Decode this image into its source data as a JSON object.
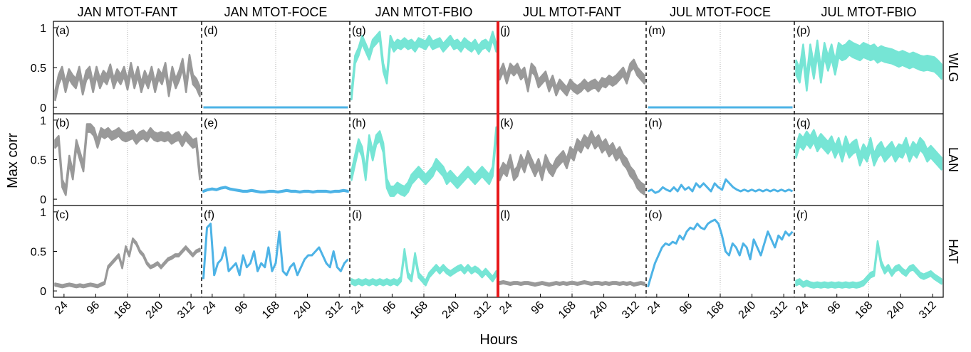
{
  "chart_data": {
    "type": "line",
    "ylabel": "Max corr",
    "xlabel": "Hours",
    "xlim": [
      0,
      336
    ],
    "ylim": [
      -0.08,
      1.08
    ],
    "xticks": [
      24,
      96,
      168,
      240,
      312
    ],
    "xtick_labels": [
      "24",
      "96",
      "168",
      "240",
      "312"
    ],
    "yticks": [
      0,
      0.5,
      1
    ],
    "ytick_labels": [
      "0",
      "0.5",
      "1"
    ],
    "gridline_x": 168,
    "colors": {
      "FANT": "#999999",
      "FOCE": "#4db3e6",
      "FBIO": "#76e5d5",
      "divider": "#e8191c"
    },
    "columns": [
      {
        "title": "JAN MTOT-FANT",
        "month": "JAN",
        "source": "FANT"
      },
      {
        "title": "JAN MTOT-FOCE",
        "month": "JAN",
        "source": "FOCE"
      },
      {
        "title": "JAN MTOT-FBIO",
        "month": "JAN",
        "source": "FBIO"
      },
      {
        "title": "JUL MTOT-FANT",
        "month": "JUL",
        "source": "FANT"
      },
      {
        "title": "JUL MTOT-FOCE",
        "month": "JUL",
        "source": "FOCE"
      },
      {
        "title": "JUL MTOT-FBIO",
        "month": "JUL",
        "source": "FBIO"
      }
    ],
    "rows": [
      "WLG",
      "LAN",
      "HAT"
    ],
    "panels": [
      {
        "label": "(a)",
        "row": 0,
        "col": 0,
        "band": 0.12,
        "values": [
          0.15,
          0.35,
          0.45,
          0.25,
          0.42,
          0.35,
          0.3,
          0.45,
          0.22,
          0.4,
          0.45,
          0.25,
          0.45,
          0.3,
          0.4,
          0.35,
          0.48,
          0.3,
          0.42,
          0.35,
          0.45,
          0.28,
          0.5,
          0.3,
          0.45,
          0.25,
          0.4,
          0.3,
          0.45,
          0.25,
          0.42,
          0.35,
          0.5,
          0.2,
          0.45,
          0.3,
          0.4,
          0.55,
          0.25,
          0.6,
          0.35,
          0.3,
          0.2
        ]
      },
      {
        "label": "(b)",
        "row": 1,
        "col": 0,
        "band": 0.1,
        "values": [
          0.7,
          0.75,
          0.2,
          0.1,
          0.5,
          0.3,
          0.7,
          0.55,
          0.4,
          0.9,
          0.9,
          0.85,
          0.7,
          0.85,
          0.82,
          0.85,
          0.8,
          0.82,
          0.85,
          0.8,
          0.78,
          0.8,
          0.82,
          0.75,
          0.8,
          0.82,
          0.78,
          0.85,
          0.8,
          0.78,
          0.8,
          0.78,
          0.8,
          0.75,
          0.78,
          0.8,
          0.72,
          0.8,
          0.75,
          0.7,
          0.72,
          0.3
        ]
      },
      {
        "label": "(c)",
        "row": 2,
        "col": 0,
        "band": 0.03,
        "values": [
          0.08,
          0.07,
          0.06,
          0.07,
          0.08,
          0.07,
          0.06,
          0.07,
          0.06,
          0.07,
          0.08,
          0.07,
          0.06,
          0.08,
          0.1,
          0.3,
          0.35,
          0.4,
          0.45,
          0.3,
          0.55,
          0.45,
          0.65,
          0.6,
          0.5,
          0.45,
          0.35,
          0.3,
          0.32,
          0.35,
          0.3,
          0.35,
          0.4,
          0.42,
          0.45,
          0.45,
          0.5,
          0.55,
          0.5,
          0.45,
          0.5,
          0.52
        ]
      },
      {
        "label": "(d)",
        "row": 0,
        "col": 1,
        "band": 0.0,
        "values": [
          0.0,
          0.0,
          0.0,
          0.0,
          0.0,
          0.0
        ]
      },
      {
        "label": "(e)",
        "row": 1,
        "col": 1,
        "band": 0.015,
        "values": [
          0.1,
          0.12,
          0.13,
          0.12,
          0.14,
          0.15,
          0.13,
          0.12,
          0.11,
          0.1,
          0.1,
          0.11,
          0.1,
          0.09,
          0.09,
          0.1,
          0.1,
          0.09,
          0.1,
          0.11,
          0.1,
          0.1,
          0.09,
          0.1,
          0.1,
          0.09,
          0.1,
          0.1,
          0.1,
          0.09,
          0.1,
          0.1,
          0.11,
          0.1
        ]
      },
      {
        "label": "(f)",
        "row": 2,
        "col": 1,
        "band": 0.0,
        "values": [
          0.15,
          0.8,
          0.85,
          0.2,
          0.35,
          0.4,
          0.55,
          0.25,
          0.3,
          0.35,
          0.2,
          0.45,
          0.3,
          0.35,
          0.5,
          0.25,
          0.35,
          0.3,
          0.55,
          0.25,
          0.35,
          0.75,
          0.25,
          0.2,
          0.3,
          0.35,
          0.2,
          0.3,
          0.4,
          0.45,
          0.45,
          0.5,
          0.55,
          0.45,
          0.35,
          0.3,
          0.5,
          0.3,
          0.25,
          0.35,
          0.4
        ]
      },
      {
        "label": "(g)",
        "row": 0,
        "col": 2,
        "band": 0.1,
        "values": [
          0.15,
          0.6,
          0.7,
          0.85,
          0.75,
          0.65,
          0.8,
          0.85,
          0.9,
          0.5,
          0.35,
          0.85,
          0.75,
          0.8,
          0.78,
          0.82,
          0.78,
          0.8,
          0.75,
          0.82,
          0.8,
          0.78,
          0.85,
          0.78,
          0.8,
          0.82,
          0.75,
          0.8,
          0.85,
          0.78,
          0.8,
          0.75,
          0.82,
          0.78,
          0.75,
          0.8,
          0.72,
          0.78,
          0.8,
          0.75,
          0.9,
          0.75
        ]
      },
      {
        "label": "(h)",
        "row": 1,
        "col": 2,
        "band": 0.12,
        "values": [
          0.3,
          0.5,
          0.7,
          0.6,
          0.3,
          0.75,
          0.55,
          0.75,
          0.8,
          0.65,
          0.2,
          0.1,
          0.1,
          0.15,
          0.12,
          0.1,
          0.15,
          0.25,
          0.3,
          0.35,
          0.3,
          0.25,
          0.3,
          0.35,
          0.45,
          0.4,
          0.35,
          0.25,
          0.3,
          0.25,
          0.2,
          0.25,
          0.3,
          0.35,
          0.3,
          0.25,
          0.3,
          0.35,
          0.3,
          0.25,
          0.35,
          0.85
        ]
      },
      {
        "label": "(i)",
        "row": 2,
        "col": 2,
        "band": 0.06,
        "values": [
          0.12,
          0.1,
          0.12,
          0.1,
          0.12,
          0.1,
          0.12,
          0.1,
          0.12,
          0.1,
          0.12,
          0.1,
          0.12,
          0.1,
          0.15,
          0.5,
          0.2,
          0.15,
          0.45,
          0.2,
          0.15,
          0.1,
          0.2,
          0.25,
          0.3,
          0.25,
          0.3,
          0.25,
          0.22,
          0.25,
          0.28,
          0.3,
          0.25,
          0.3,
          0.25,
          0.28,
          0.25,
          0.2,
          0.25,
          0.2,
          0.15,
          0.22
        ]
      },
      {
        "label": "(j)",
        "row": 0,
        "col": 3,
        "band": 0.1,
        "values": [
          0.4,
          0.5,
          0.35,
          0.5,
          0.45,
          0.5,
          0.4,
          0.45,
          0.25,
          0.5,
          0.45,
          0.3,
          0.35,
          0.4,
          0.25,
          0.35,
          0.2,
          0.3,
          0.25,
          0.2,
          0.3,
          0.25,
          0.22,
          0.25,
          0.3,
          0.25,
          0.28,
          0.3,
          0.25,
          0.32,
          0.3,
          0.35,
          0.32,
          0.35,
          0.4,
          0.45,
          0.35,
          0.5,
          0.55,
          0.45,
          0.4,
          0.35
        ]
      },
      {
        "label": "(k)",
        "row": 1,
        "col": 3,
        "band": 0.12,
        "values": [
          0.3,
          0.4,
          0.35,
          0.5,
          0.3,
          0.35,
          0.5,
          0.4,
          0.55,
          0.45,
          0.35,
          0.45,
          0.3,
          0.5,
          0.4,
          0.35,
          0.45,
          0.5,
          0.55,
          0.45,
          0.6,
          0.55,
          0.7,
          0.65,
          0.75,
          0.7,
          0.8,
          0.7,
          0.75,
          0.65,
          0.7,
          0.6,
          0.65,
          0.55,
          0.6,
          0.5,
          0.45,
          0.35,
          0.3,
          0.2,
          0.15,
          0.12
        ]
      },
      {
        "label": "(l)",
        "row": 2,
        "col": 3,
        "band": 0.03,
        "values": [
          0.1,
          0.11,
          0.1,
          0.09,
          0.1,
          0.1,
          0.09,
          0.1,
          0.1,
          0.09,
          0.08,
          0.09,
          0.1,
          0.09,
          0.08,
          0.09,
          0.1,
          0.09,
          0.1,
          0.09,
          0.1,
          0.1,
          0.09,
          0.1,
          0.11,
          0.1,
          0.09,
          0.1,
          0.1,
          0.09,
          0.1,
          0.09,
          0.1,
          0.1,
          0.09,
          0.1,
          0.09,
          0.1,
          0.08,
          0.09,
          0.1,
          0.09
        ]
      },
      {
        "label": "(m)",
        "row": 0,
        "col": 4,
        "band": 0.0,
        "values": [
          0.0,
          0.0,
          0.0,
          0.0,
          0.0,
          0.0
        ]
      },
      {
        "label": "(n)",
        "row": 1,
        "col": 4,
        "band": 0.0,
        "values": [
          0.1,
          0.12,
          0.08,
          0.1,
          0.15,
          0.12,
          0.1,
          0.15,
          0.1,
          0.18,
          0.12,
          0.15,
          0.1,
          0.2,
          0.15,
          0.2,
          0.15,
          0.1,
          0.2,
          0.15,
          0.12,
          0.25,
          0.2,
          0.15,
          0.12,
          0.1,
          0.12,
          0.1,
          0.12,
          0.1,
          0.12,
          0.1,
          0.12,
          0.1,
          0.12,
          0.1,
          0.12,
          0.1,
          0.12,
          0.1
        ]
      },
      {
        "label": "(o)",
        "row": 2,
        "col": 4,
        "band": 0.0,
        "values": [
          0.05,
          0.2,
          0.35,
          0.45,
          0.55,
          0.6,
          0.58,
          0.62,
          0.6,
          0.7,
          0.65,
          0.75,
          0.8,
          0.78,
          0.85,
          0.8,
          0.78,
          0.85,
          0.88,
          0.9,
          0.85,
          0.7,
          0.5,
          0.45,
          0.6,
          0.55,
          0.45,
          0.6,
          0.55,
          0.4,
          0.65,
          0.55,
          0.45,
          0.6,
          0.75,
          0.65,
          0.55,
          0.7,
          0.65,
          0.75,
          0.7,
          0.75
        ]
      },
      {
        "label": "(p)",
        "row": 0,
        "col": 5,
        "band": 0.18,
        "values": [
          0.5,
          0.4,
          0.7,
          0.3,
          0.7,
          0.45,
          0.75,
          0.4,
          0.72,
          0.55,
          0.7,
          0.5,
          0.72,
          0.68,
          0.7,
          0.75,
          0.72,
          0.7,
          0.68,
          0.72,
          0.7,
          0.68,
          0.7,
          0.65,
          0.68,
          0.66,
          0.65,
          0.64,
          0.62,
          0.6,
          0.62,
          0.6,
          0.58,
          0.6,
          0.58,
          0.56,
          0.55,
          0.56,
          0.55,
          0.54,
          0.5,
          0.45
        ]
      },
      {
        "label": "(q)",
        "row": 1,
        "col": 5,
        "band": 0.15,
        "values": [
          0.6,
          0.75,
          0.7,
          0.78,
          0.72,
          0.8,
          0.68,
          0.75,
          0.7,
          0.65,
          0.72,
          0.6,
          0.7,
          0.55,
          0.72,
          0.6,
          0.65,
          0.68,
          0.5,
          0.62,
          0.55,
          0.7,
          0.5,
          0.6,
          0.65,
          0.55,
          0.6,
          0.65,
          0.55,
          0.62,
          0.6,
          0.7,
          0.55,
          0.65,
          0.6,
          0.7,
          0.65,
          0.55,
          0.6,
          0.55,
          0.5,
          0.45
        ]
      },
      {
        "label": "(r)",
        "row": 2,
        "col": 5,
        "band": 0.06,
        "values": [
          0.1,
          0.12,
          0.08,
          0.1,
          0.08,
          0.07,
          0.08,
          0.07,
          0.08,
          0.07,
          0.08,
          0.07,
          0.08,
          0.07,
          0.08,
          0.07,
          0.08,
          0.07,
          0.08,
          0.1,
          0.15,
          0.2,
          0.22,
          0.6,
          0.35,
          0.25,
          0.3,
          0.22,
          0.28,
          0.3,
          0.25,
          0.22,
          0.28,
          0.3,
          0.25,
          0.2,
          0.18,
          0.2,
          0.22,
          0.18,
          0.15,
          0.12
        ]
      }
    ]
  }
}
